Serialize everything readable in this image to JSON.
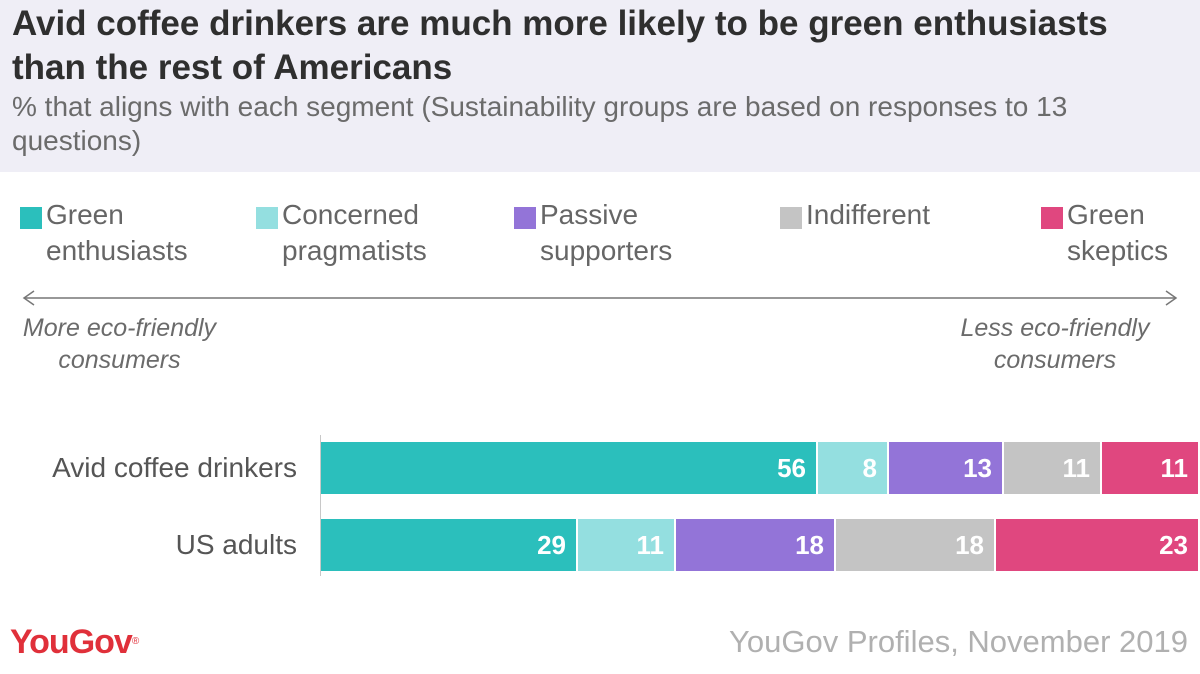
{
  "header": {
    "title": "Avid coffee drinkers are much more likely to be green enthusiasts than the rest of Americans",
    "subtitle": "% that aligns with each segment (Sustainability groups are based on responses to 13 questions)"
  },
  "legend": [
    {
      "line1": "Green",
      "line2": "enthusiasts",
      "color": "#2bbfbc"
    },
    {
      "line1": "Concerned",
      "line2": "pragmatists",
      "color": "#94dfe0"
    },
    {
      "line1": "Passive",
      "line2": "supporters",
      "color": "#9374d8"
    },
    {
      "line1": "Indifferent",
      "line2": "",
      "color": "#c4c4c4"
    },
    {
      "line1": "Green",
      "line2": "skeptics",
      "color": "#e0477f"
    }
  ],
  "scale": {
    "left_line1": "More eco-friendly",
    "left_line2": "consumers",
    "right_line1": "Less eco-friendly",
    "right_line2": "consumers"
  },
  "chart_data": {
    "type": "bar",
    "orientation": "horizontal",
    "stacked": true,
    "normalized_to": 100,
    "categories": [
      "Avid coffee drinkers",
      "US adults"
    ],
    "series": [
      {
        "name": "Green enthusiasts",
        "values": [
          56,
          29
        ],
        "color": "#2bbfbc"
      },
      {
        "name": "Concerned pragmatists",
        "values": [
          8,
          11
        ],
        "color": "#94dfe0"
      },
      {
        "name": "Passive supporters",
        "values": [
          13,
          18
        ],
        "color": "#9374d8"
      },
      {
        "name": "Indifferent",
        "values": [
          11,
          18
        ],
        "color": "#c4c4c4"
      },
      {
        "name": "Green skeptics",
        "values": [
          11,
          23
        ],
        "color": "#e0477f"
      }
    ],
    "legend_position": "top",
    "grid": false
  },
  "footer": {
    "logo": "YouGov",
    "source": "YouGov Profiles, November 2019"
  }
}
